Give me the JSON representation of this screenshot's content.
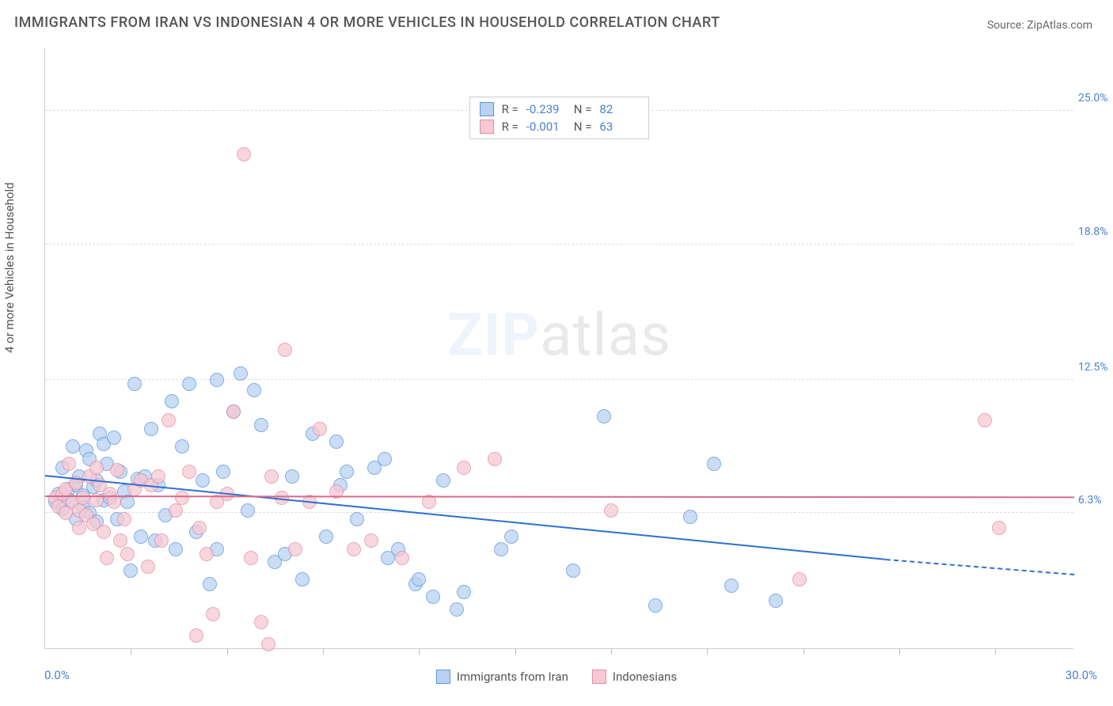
{
  "title": "IMMIGRANTS FROM IRAN VS INDONESIAN 4 OR MORE VEHICLES IN HOUSEHOLD CORRELATION CHART",
  "source": "Source: ZipAtlas.com",
  "watermark": {
    "zip": "ZIP",
    "atlas": "atlas"
  },
  "chart": {
    "type": "scatter",
    "yaxis_title": "4 or more Vehicles in Household",
    "xlim": [
      0.0,
      30.0
    ],
    "ylim": [
      0.0,
      28.0
    ],
    "yticks": [
      {
        "v": 6.3,
        "label": "6.3%"
      },
      {
        "v": 12.5,
        "label": "12.5%"
      },
      {
        "v": 18.8,
        "label": "18.8%"
      },
      {
        "v": 25.0,
        "label": "25.0%"
      }
    ],
    "xtick_positions": [
      2.5,
      5.3,
      8.1,
      10.9,
      13.7,
      16.5,
      19.3,
      22.1,
      24.9,
      27.7
    ],
    "xaxis_min_label": "0.0%",
    "xaxis_max_label": "30.0%",
    "background_color": "#ffffff",
    "grid_color": "#dddddd",
    "marker_radius": 9,
    "series": [
      {
        "name": "Immigrants from Iran",
        "fill": "#b9d2f1",
        "stroke": "#5a94df",
        "R": "-0.239",
        "N": "82",
        "regression": {
          "x1": 0.0,
          "y1": 8.0,
          "x2": 24.5,
          "y2": 4.1,
          "color": "#2f6fd0",
          "dash_to_x": 30.0,
          "dash_to_y": 3.4
        },
        "points": [
          [
            0.3,
            6.8
          ],
          [
            0.4,
            7.2
          ],
          [
            0.5,
            6.5
          ],
          [
            0.5,
            8.4
          ],
          [
            0.6,
            7.0
          ],
          [
            0.7,
            7.4
          ],
          [
            0.7,
            6.9
          ],
          [
            0.8,
            9.4
          ],
          [
            0.9,
            7.6
          ],
          [
            0.9,
            6.0
          ],
          [
            1.0,
            8.0
          ],
          [
            1.1,
            6.6
          ],
          [
            1.1,
            7.1
          ],
          [
            1.2,
            9.2
          ],
          [
            1.3,
            6.3
          ],
          [
            1.3,
            8.8
          ],
          [
            1.4,
            7.5
          ],
          [
            1.5,
            7.8
          ],
          [
            1.5,
            5.9
          ],
          [
            1.6,
            10.0
          ],
          [
            1.7,
            9.5
          ],
          [
            1.7,
            6.9
          ],
          [
            1.8,
            8.6
          ],
          [
            1.9,
            7.0
          ],
          [
            2.0,
            9.8
          ],
          [
            2.1,
            6.0
          ],
          [
            2.2,
            8.2
          ],
          [
            2.3,
            7.3
          ],
          [
            2.4,
            6.8
          ],
          [
            2.5,
            3.6
          ],
          [
            2.6,
            12.3
          ],
          [
            2.7,
            7.9
          ],
          [
            2.8,
            5.2
          ],
          [
            2.9,
            8.0
          ],
          [
            3.1,
            10.2
          ],
          [
            3.2,
            5.0
          ],
          [
            3.3,
            7.6
          ],
          [
            3.5,
            6.2
          ],
          [
            3.7,
            11.5
          ],
          [
            3.8,
            4.6
          ],
          [
            4.0,
            9.4
          ],
          [
            4.2,
            12.3
          ],
          [
            4.4,
            5.4
          ],
          [
            4.6,
            7.8
          ],
          [
            4.8,
            3.0
          ],
          [
            5.0,
            4.6
          ],
          [
            5.0,
            12.5
          ],
          [
            5.2,
            8.2
          ],
          [
            5.5,
            11.0
          ],
          [
            5.7,
            12.8
          ],
          [
            5.9,
            6.4
          ],
          [
            6.1,
            12.0
          ],
          [
            6.3,
            10.4
          ],
          [
            6.7,
            4.0
          ],
          [
            7.0,
            4.4
          ],
          [
            7.2,
            8.0
          ],
          [
            7.5,
            3.2
          ],
          [
            7.8,
            10.0
          ],
          [
            8.2,
            5.2
          ],
          [
            8.5,
            9.6
          ],
          [
            8.6,
            7.6
          ],
          [
            8.8,
            8.2
          ],
          [
            9.1,
            6.0
          ],
          [
            9.6,
            8.4
          ],
          [
            9.9,
            8.8
          ],
          [
            10.0,
            4.2
          ],
          [
            10.3,
            4.6
          ],
          [
            10.8,
            3.0
          ],
          [
            10.9,
            3.2
          ],
          [
            11.3,
            2.4
          ],
          [
            11.6,
            7.8
          ],
          [
            12.0,
            1.8
          ],
          [
            12.2,
            2.6
          ],
          [
            13.3,
            4.6
          ],
          [
            13.6,
            5.2
          ],
          [
            15.4,
            3.6
          ],
          [
            16.3,
            10.8
          ],
          [
            17.8,
            2.0
          ],
          [
            18.8,
            6.1
          ],
          [
            19.5,
            8.6
          ],
          [
            20.0,
            2.9
          ],
          [
            21.3,
            2.2
          ]
        ]
      },
      {
        "name": "Indonesians",
        "fill": "#f6c9d4",
        "stroke": "#e48ba3",
        "R": "-0.001",
        "N": "63",
        "regression": {
          "x1": 0.0,
          "y1": 7.05,
          "x2": 30.0,
          "y2": 7.0,
          "color": "#d96a8a"
        },
        "points": [
          [
            0.3,
            7.0
          ],
          [
            0.4,
            6.6
          ],
          [
            0.5,
            7.2
          ],
          [
            0.6,
            7.4
          ],
          [
            0.6,
            6.3
          ],
          [
            0.7,
            8.6
          ],
          [
            0.8,
            6.8
          ],
          [
            0.9,
            7.7
          ],
          [
            1.0,
            6.4
          ],
          [
            1.0,
            5.6
          ],
          [
            1.1,
            7.0
          ],
          [
            1.2,
            6.2
          ],
          [
            1.3,
            8.0
          ],
          [
            1.4,
            5.8
          ],
          [
            1.5,
            6.9
          ],
          [
            1.5,
            8.4
          ],
          [
            1.6,
            7.6
          ],
          [
            1.7,
            5.4
          ],
          [
            1.8,
            4.2
          ],
          [
            1.9,
            7.2
          ],
          [
            2.0,
            6.8
          ],
          [
            2.1,
            8.3
          ],
          [
            2.2,
            5.0
          ],
          [
            2.3,
            6.0
          ],
          [
            2.4,
            4.4
          ],
          [
            2.6,
            7.4
          ],
          [
            2.8,
            7.8
          ],
          [
            3.0,
            3.8
          ],
          [
            3.1,
            7.6
          ],
          [
            3.3,
            8.0
          ],
          [
            3.4,
            5.0
          ],
          [
            3.6,
            10.6
          ],
          [
            3.8,
            6.4
          ],
          [
            4.0,
            7.0
          ],
          [
            4.2,
            8.2
          ],
          [
            4.5,
            5.6
          ],
          [
            4.7,
            4.4
          ],
          [
            4.9,
            1.6
          ],
          [
            5.0,
            6.8
          ],
          [
            5.3,
            7.2
          ],
          [
            5.5,
            11.0
          ],
          [
            5.8,
            23.0
          ],
          [
            6.0,
            4.2
          ],
          [
            6.3,
            1.2
          ],
          [
            6.6,
            8.0
          ],
          [
            6.9,
            7.0
          ],
          [
            7.0,
            13.9
          ],
          [
            7.3,
            4.6
          ],
          [
            7.7,
            6.8
          ],
          [
            8.0,
            10.2
          ],
          [
            8.5,
            7.3
          ],
          [
            9.0,
            4.6
          ],
          [
            9.5,
            5.0
          ],
          [
            10.4,
            4.2
          ],
          [
            11.2,
            6.8
          ],
          [
            12.2,
            8.4
          ],
          [
            13.1,
            8.8
          ],
          [
            16.5,
            6.4
          ],
          [
            22.0,
            3.2
          ],
          [
            27.4,
            10.6
          ],
          [
            27.8,
            5.6
          ],
          [
            6.5,
            0.2
          ],
          [
            4.4,
            0.6
          ]
        ]
      }
    ],
    "legend_bottom": [
      {
        "label": "Immigrants from Iran",
        "fill": "#b9d2f1",
        "stroke": "#5a94df"
      },
      {
        "label": "Indonesians",
        "fill": "#f6c9d4",
        "stroke": "#e48ba3"
      }
    ]
  }
}
